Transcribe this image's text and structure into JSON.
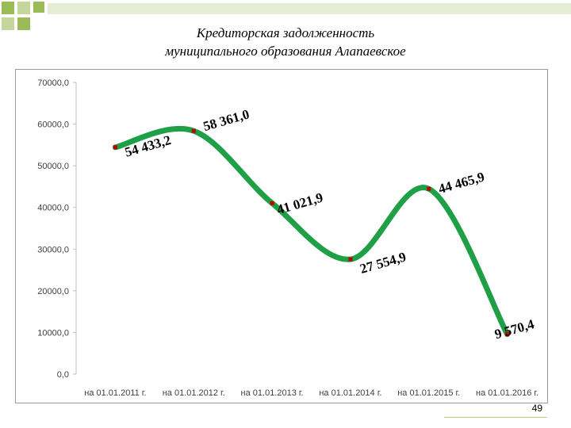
{
  "title_lines": [
    "Кредиторская задолженность",
    "муниципального образования Алапаевское"
  ],
  "page_number": "49",
  "colors": {
    "line": "#1f9f46",
    "marker": "#c00000",
    "deco_green": "#9bbb59",
    "deco_light": "#c3d69b"
  },
  "chart_data": {
    "type": "line",
    "title": "Кредиторская задолженность муниципального образования Алапаевское",
    "categories": [
      "на 01.01.2011 г.",
      "на 01.01.2012 г.",
      "на 01.01.2013 г.",
      "на 01.01.2014 г.",
      "на 01.01.2015 г.",
      "на 01.01.2016 г."
    ],
    "series": [
      {
        "values": [
          54433.2,
          58361.0,
          41021.9,
          27554.9,
          44465.9,
          9570.4
        ],
        "labels": [
          "54 433,2",
          "58 361,0",
          "41 021,9",
          "27 554,9",
          "44 465,9",
          "9 570,4"
        ]
      }
    ],
    "y_ticks": [
      "0,0",
      "10000,0",
      "20000,0",
      "30000,0",
      "40000,0",
      "50000,0",
      "60000,0",
      "70000,0"
    ],
    "ylim": [
      0,
      70000
    ],
    "grid": false,
    "legend": "none"
  }
}
